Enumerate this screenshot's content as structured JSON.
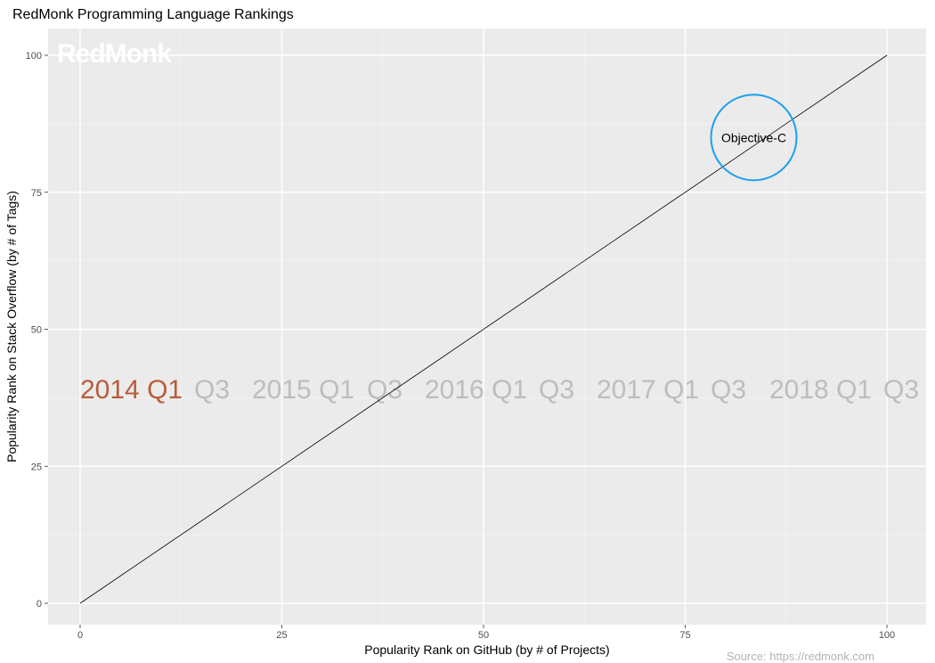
{
  "chart_data": {
    "type": "scatter",
    "title": "RedMonk Programming Language Rankings",
    "xlabel": "Popularity Rank on GitHub (by # of Projects)",
    "ylabel": "Popularity Rank on Stack Overflow (by # of Tags)",
    "xlim": [
      -4,
      104
    ],
    "ylim": [
      -4,
      105
    ],
    "x_ticks": [
      0,
      25,
      50,
      75,
      100
    ],
    "y_ticks": [
      0,
      25,
      50,
      75,
      100
    ],
    "grid": true,
    "reference_line": {
      "from": [
        0,
        0
      ],
      "to": [
        100,
        100
      ]
    },
    "points": [
      {
        "label": "Objective-C",
        "x": 83.5,
        "y": 85,
        "color": "#1a9ff0"
      }
    ],
    "timeline": {
      "active": "2014 Q1",
      "active_color": "#b85c3c",
      "inactive_color": "#bdbdbd",
      "labels": [
        "2014 Q1",
        "Q3",
        "2015 Q1",
        "Q3",
        "2016 Q1",
        "Q3",
        "2017 Q1",
        "Q3",
        "2018 Q1",
        "Q3"
      ]
    },
    "watermark": "RedMonk",
    "caption": "Source: https://redmonk.com"
  }
}
